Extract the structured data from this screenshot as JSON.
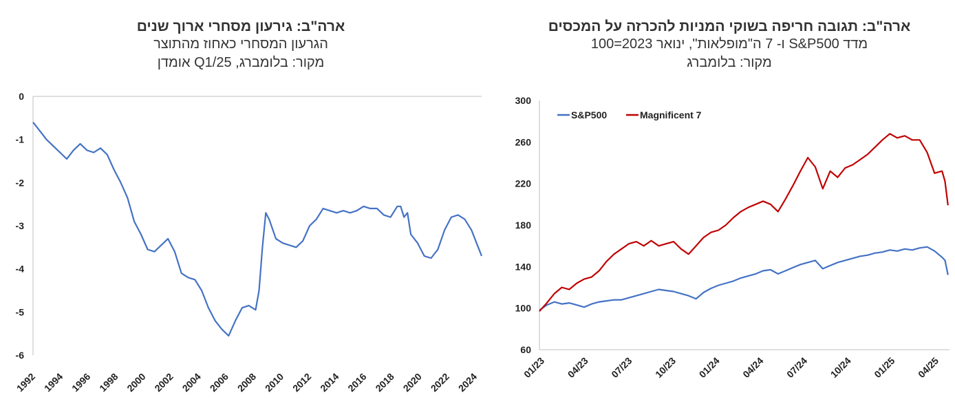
{
  "charts": [
    {
      "title": "ארה\"ב: גירעון מסחרי ארוך שנים",
      "subtitle": "הגרעון המסחרי כאחוז מהתוצר",
      "source": "מקור: בלומברג, Q1/25 אומדן",
      "colors": {
        "line": "#4472c4",
        "axis": "#bfbfbf"
      },
      "chart_data": {
        "type": "line",
        "ylim": [
          -6,
          0
        ],
        "xlim": [
          1992,
          2025.25
        ],
        "yticks": [
          "0",
          "-1",
          "-2",
          "-3",
          "-4",
          "-5",
          "-6"
        ],
        "xticks": [
          "1992",
          "1994",
          "1996",
          "1998",
          "2000",
          "2002",
          "2004",
          "2006",
          "2008",
          "2010",
          "2012",
          "2014",
          "2016",
          "2018",
          "2020",
          "2022",
          "2024"
        ],
        "grid": false,
        "series": [
          {
            "x": [
              1992,
              1992.5,
              1993,
              1993.5,
              1994,
              1994.5,
              1995,
              1995.5,
              1996,
              1996.5,
              1997,
              1997.5,
              1998,
              1998.5,
              1999,
              1999.5,
              2000,
              2000.5,
              2001,
              2001.5,
              2002,
              2002.5,
              2003,
              2003.5,
              2004,
              2004.5,
              2005,
              2005.5,
              2006,
              2006.5,
              2007,
              2007.5,
              2008,
              2008.25,
              2008.5,
              2008.75,
              2009,
              2009.25,
              2009.5,
              2010,
              2010.5,
              2011,
              2011.5,
              2012,
              2012.5,
              2013,
              2013.5,
              2014,
              2014.5,
              2015,
              2015.5,
              2016,
              2016.5,
              2017,
              2017.5,
              2018,
              2018.5,
              2019,
              2019.25,
              2019.5,
              2019.75,
              2020,
              2020.5,
              2021,
              2021.5,
              2022,
              2022.5,
              2023,
              2023.5,
              2024,
              2024.5,
              2025,
              2025.25
            ],
            "values": [
              -0.6,
              -0.8,
              -1.0,
              -1.15,
              -1.3,
              -1.45,
              -1.25,
              -1.1,
              -1.25,
              -1.3,
              -1.2,
              -1.35,
              -1.7,
              -2.0,
              -2.35,
              -2.9,
              -3.2,
              -3.55,
              -3.6,
              -3.45,
              -3.3,
              -3.6,
              -4.1,
              -4.2,
              -4.25,
              -4.5,
              -4.9,
              -5.2,
              -5.4,
              -5.55,
              -5.2,
              -4.9,
              -4.85,
              -4.9,
              -4.95,
              -4.5,
              -3.5,
              -2.7,
              -2.85,
              -3.3,
              -3.4,
              -3.45,
              -3.5,
              -3.35,
              -3.0,
              -2.85,
              -2.6,
              -2.65,
              -2.7,
              -2.65,
              -2.7,
              -2.65,
              -2.55,
              -2.6,
              -2.6,
              -2.75,
              -2.8,
              -2.55,
              -2.55,
              -2.8,
              -2.7,
              -3.2,
              -3.4,
              -3.7,
              -3.75,
              -3.55,
              -3.1,
              -2.8,
              -2.75,
              -2.85,
              -3.1,
              -3.5,
              -3.7
            ]
          }
        ]
      }
    },
    {
      "title": "ארה\"ב: תגובה חריפה בשוקי המניות להכרזה על המכסים",
      "subtitle": "מדד S&P500 ו- 7 ה\"מופלאות\", ינואר 2023=100",
      "source": "מקור: בלומברג",
      "colors": {
        "sp500": "#4472c4",
        "mag7": "#c00000",
        "axis": "#bfbfbf"
      },
      "chart_data": {
        "type": "line",
        "ylim": [
          60,
          300
        ],
        "xlim": [
          0,
          27.5
        ],
        "yticks": [
          "300",
          "260",
          "220",
          "180",
          "140",
          "100",
          "60"
        ],
        "xticks": [
          "01/23",
          "04/23",
          "07/23",
          "10/23",
          "01/24",
          "04/24",
          "07/24",
          "10/24",
          "01/25",
          "04/25"
        ],
        "legend": "top-left",
        "grid": false,
        "series": [
          {
            "name": "S&P500",
            "x": [
              0,
              0.5,
              1,
              1.5,
              2,
              2.5,
              3,
              3.5,
              4,
              4.5,
              5,
              5.5,
              6,
              6.5,
              7,
              7.5,
              8,
              8.5,
              9,
              9.5,
              10,
              10.5,
              11,
              11.5,
              12,
              12.5,
              13,
              13.5,
              14,
              14.5,
              15,
              15.5,
              16,
              16.5,
              17,
              17.5,
              18,
              18.5,
              19,
              19.5,
              20,
              20.5,
              21,
              21.5,
              22,
              22.5,
              23,
              23.5,
              24,
              24.5,
              25,
              25.5,
              26,
              26.5,
              27,
              27.2,
              27.4
            ],
            "values": [
              98,
              103,
              106,
              104,
              105,
              103,
              101,
              104,
              106,
              107,
              108,
              108,
              110,
              112,
              114,
              116,
              118,
              117,
              116,
              114,
              112,
              109,
              115,
              119,
              122,
              124,
              126,
              129,
              131,
              133,
              136,
              137,
              133,
              136,
              139,
              142,
              144,
              146,
              138,
              141,
              144,
              146,
              148,
              150,
              151,
              153,
              154,
              156,
              155,
              157,
              156,
              158,
              159,
              155,
              149,
              146,
              132
            ]
          },
          {
            "name": "Magnificent 7",
            "x": [
              0,
              0.5,
              1,
              1.5,
              2,
              2.5,
              3,
              3.5,
              4,
              4.5,
              5,
              5.5,
              6,
              6.5,
              7,
              7.5,
              8,
              8.5,
              9,
              9.5,
              10,
              10.5,
              11,
              11.5,
              12,
              12.5,
              13,
              13.5,
              14,
              14.5,
              15,
              15.5,
              16,
              16.5,
              17,
              17.5,
              18,
              18.5,
              19,
              19.5,
              20,
              20.5,
              21,
              21.5,
              22,
              22.5,
              23,
              23.5,
              24,
              24.5,
              25,
              25.5,
              26,
              26.5,
              27,
              27.2,
              27.4
            ],
            "values": [
              97,
              105,
              114,
              120,
              118,
              124,
              128,
              130,
              136,
              145,
              152,
              157,
              162,
              164,
              160,
              165,
              160,
              162,
              164,
              157,
              152,
              160,
              168,
              173,
              175,
              180,
              187,
              193,
              197,
              200,
              203,
              200,
              193,
              205,
              218,
              232,
              245,
              236,
              215,
              232,
              226,
              235,
              238,
              243,
              248,
              255,
              262,
              268,
              264,
              266,
              262,
              262,
              250,
              230,
              232,
              222,
              199
            ]
          }
        ]
      }
    }
  ]
}
